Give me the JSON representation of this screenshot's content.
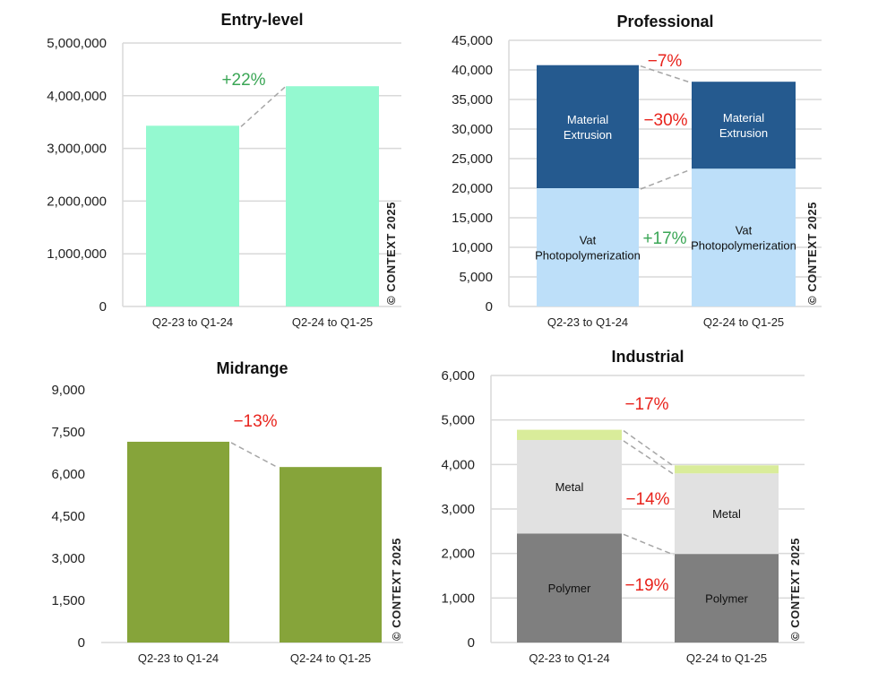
{
  "colors": {
    "entry": "#94f9d0",
    "material_extrusion": "#255a8f",
    "vat_photopolymerization": "#bddff9",
    "midrange": "#86a43a",
    "polymer": "#7f7f7f",
    "metal": "#e1e1e1",
    "industrial_top": "#d9ec9a",
    "positive": "#3aa655",
    "negative": "#e8231c",
    "grid": "#d9d9d9"
  },
  "watermark": "© CONTEXT 2025",
  "chart_data": [
    {
      "type": "bar",
      "title": "Entry-level",
      "categories": [
        "Q2-23 to Q1-24",
        "Q2-24 to Q1-25"
      ],
      "series": [
        {
          "values": [
            3430000,
            4180000
          ],
          "color": "#94f9d0"
        }
      ],
      "ylim": [
        0,
        5000000
      ],
      "yticks": [
        "0",
        "1,000,000",
        "2,000,000",
        "3,000,000",
        "4,000,000",
        "5,000,000"
      ],
      "grid": true,
      "annotations": [
        {
          "text": "+22%",
          "sentiment": "positive"
        }
      ]
    },
    {
      "type": "bar",
      "stacked": true,
      "title": "Professional",
      "categories": [
        "Q2-23 to Q1-24",
        "Q2-24 to Q1-25"
      ],
      "series": [
        {
          "name": "Vat Photopolymerization",
          "label_lines": [
            "Vat",
            "Photopolymerization"
          ],
          "values": [
            20000,
            23300
          ],
          "color": "#bddff9",
          "label_color": "#111"
        },
        {
          "name": "Material Extrusion",
          "label_lines": [
            "Material",
            "Extrusion"
          ],
          "values": [
            20800,
            14700
          ],
          "color": "#255a8f",
          "label_color": "#ffffff"
        }
      ],
      "ylim": [
        0,
        45000
      ],
      "yticks": [
        "0",
        "5,000",
        "10,000",
        "15,000",
        "20,000",
        "25,000",
        "30,000",
        "35,000",
        "40,000",
        "45,000"
      ],
      "grid": true,
      "annotations": [
        {
          "text": "−7%",
          "sentiment": "negative"
        },
        {
          "text": "−30%",
          "sentiment": "negative"
        },
        {
          "text": "+17%",
          "sentiment": "positive"
        }
      ]
    },
    {
      "type": "bar",
      "title": "Midrange",
      "categories": [
        "Q2-23 to Q1-24",
        "Q2-24 to Q1-25"
      ],
      "series": [
        {
          "values": [
            7150,
            6250
          ],
          "color": "#86a43a"
        }
      ],
      "ylim": [
        0,
        9000
      ],
      "yticks": [
        "0",
        "1,500",
        "3,000",
        "4,500",
        "6,000",
        "7,500",
        "9,000"
      ],
      "grid": false,
      "annotations": [
        {
          "text": "−13%",
          "sentiment": "negative"
        }
      ]
    },
    {
      "type": "bar",
      "stacked": true,
      "title": "Industrial",
      "categories": [
        "Q2-23 to Q1-24",
        "Q2-24 to Q1-25"
      ],
      "series": [
        {
          "name": "Polymer",
          "label_lines": [
            "Polymer"
          ],
          "values": [
            2450,
            1990
          ],
          "color": "#7f7f7f",
          "label_color": "#111"
        },
        {
          "name": "Metal",
          "label_lines": [
            "Metal"
          ],
          "values": [
            2100,
            1810
          ],
          "color": "#e1e1e1",
          "label_color": "#111"
        },
        {
          "label_lines": [],
          "values": [
            230,
            180
          ],
          "color": "#d9ec9a"
        }
      ],
      "ylim": [
        0,
        6000
      ],
      "yticks": [
        "0",
        "1,000",
        "2,000",
        "3,000",
        "4,000",
        "5,000",
        "6,000"
      ],
      "grid": true,
      "annotations": [
        {
          "text": "−17%",
          "sentiment": "negative"
        },
        {
          "text": "−14%",
          "sentiment": "negative"
        },
        {
          "text": "−19%",
          "sentiment": "negative"
        }
      ]
    }
  ]
}
